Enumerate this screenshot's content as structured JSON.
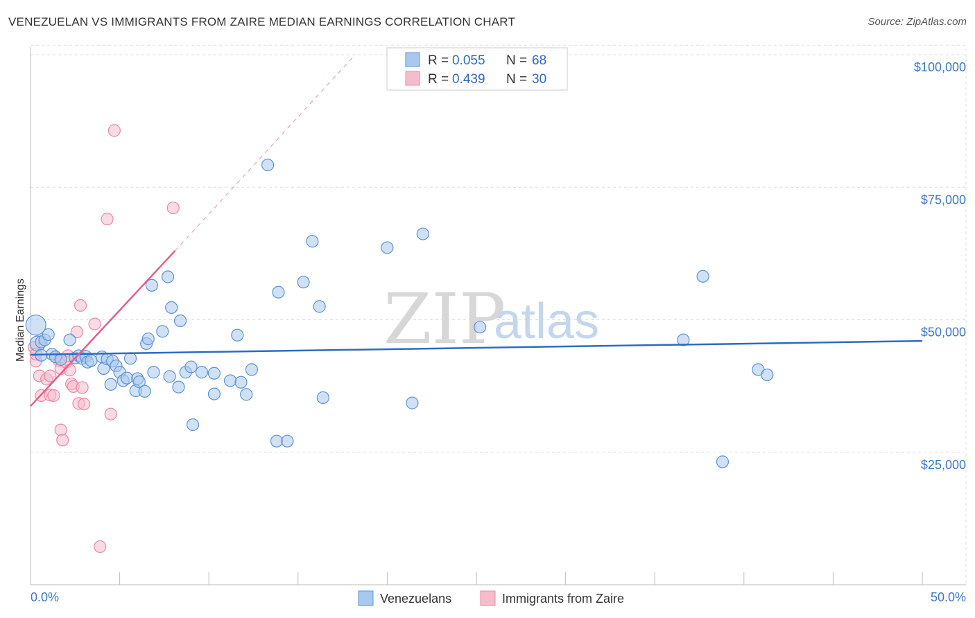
{
  "header": {
    "title": "VENEZUELAN VS IMMIGRANTS FROM ZAIRE MEDIAN EARNINGS CORRELATION CHART",
    "source": "Source: ZipAtlas.com"
  },
  "colors": {
    "blue_fill": "#a9c8ee",
    "blue_stroke": "#5b93d6",
    "blue_line": "#2b6cc4",
    "pink_fill": "#f6bccc",
    "pink_stroke": "#e98aa6",
    "pink_line": "#e4608a",
    "grid": "#dddddd",
    "tick_text": "#3b78c8"
  },
  "legend": {
    "rows": [
      {
        "r_label": "R =",
        "r_value": "0.055",
        "n_label": "N =",
        "n_value": "68"
      },
      {
        "r_label": "R =",
        "r_value": "0.439",
        "n_label": "N =",
        "n_value": "30"
      }
    ]
  },
  "watermark": {
    "zip": "ZIP",
    "atlas": "atlas"
  },
  "chart_data": {
    "type": "scatter",
    "title": "VENEZUELAN VS IMMIGRANTS FROM ZAIRE MEDIAN EARNINGS CORRELATION CHART",
    "xlabel": "",
    "ylabel": "Median Earnings",
    "xlim": [
      0,
      50
    ],
    "ylim": [
      0,
      102000
    ],
    "x_tick_labels": [
      "0.0%",
      "50.0%"
    ],
    "y_ticks": [
      25000,
      50000,
      75000,
      100000
    ],
    "y_tick_labels": [
      "$25,000",
      "$50,000",
      "$75,000",
      "$100,000"
    ],
    "grid": true,
    "legend_position": "top-center",
    "series": [
      {
        "name": "Venezuelans",
        "color": "blue",
        "r": 0.055,
        "n": 68,
        "trend": {
          "x0": 0,
          "y0": 43400,
          "x1": 50,
          "y1": 46000
        },
        "points": [
          [
            0.3,
            49000,
            1.7
          ],
          [
            0.4,
            45500,
            1.3
          ],
          [
            0.6,
            45800,
            1.0
          ],
          [
            0.8,
            46200,
            1.0
          ],
          [
            1.0,
            47200,
            1.0
          ],
          [
            1.2,
            43500,
            1.0
          ],
          [
            1.4,
            43000,
            1.0
          ],
          [
            1.7,
            42500,
            1.0
          ],
          [
            2.2,
            46200,
            1.0
          ],
          [
            2.5,
            42800,
            1.0
          ],
          [
            2.7,
            43200,
            1.0
          ],
          [
            2.9,
            42700,
            1.0
          ],
          [
            3.1,
            43100,
            1.0
          ],
          [
            3.2,
            42000,
            1.0
          ],
          [
            3.4,
            42300,
            1.0
          ],
          [
            4.0,
            43000,
            1.0
          ],
          [
            4.1,
            40800,
            1.0
          ],
          [
            4.3,
            42600,
            1.0
          ],
          [
            4.5,
            37800,
            1.0
          ],
          [
            4.6,
            42200,
            1.0
          ],
          [
            4.8,
            41300,
            1.0
          ],
          [
            5.0,
            40100,
            1.0
          ],
          [
            5.2,
            38500,
            1.0
          ],
          [
            5.4,
            39000,
            1.0
          ],
          [
            5.6,
            42700,
            1.0
          ],
          [
            5.9,
            36600,
            1.0
          ],
          [
            6.0,
            38900,
            1.0
          ],
          [
            6.1,
            38300,
            1.0
          ],
          [
            6.4,
            36500,
            1.0
          ],
          [
            6.5,
            45500,
            1.0
          ],
          [
            6.6,
            46400,
            1.0
          ],
          [
            6.8,
            56500,
            1.0
          ],
          [
            6.9,
            40100,
            1.0
          ],
          [
            7.4,
            47800,
            1.0
          ],
          [
            7.7,
            58100,
            1.0
          ],
          [
            7.8,
            39300,
            1.0
          ],
          [
            7.9,
            52300,
            1.0
          ],
          [
            8.3,
            37300,
            1.0
          ],
          [
            8.4,
            49800,
            1.0
          ],
          [
            8.7,
            40100,
            1.0
          ],
          [
            9.0,
            41100,
            1.0
          ],
          [
            9.1,
            30200,
            1.0
          ],
          [
            9.6,
            40100,
            1.0
          ],
          [
            10.3,
            36000,
            1.0
          ],
          [
            10.3,
            39900,
            1.0
          ],
          [
            11.2,
            38500,
            1.0
          ],
          [
            11.6,
            47100,
            1.0
          ],
          [
            11.8,
            38200,
            1.0
          ],
          [
            12.1,
            35900,
            1.0
          ],
          [
            12.4,
            40600,
            1.0
          ],
          [
            13.3,
            79200,
            1.0
          ],
          [
            13.8,
            27100,
            1.0
          ],
          [
            13.9,
            55200,
            1.0
          ],
          [
            14.4,
            27100,
            1.0
          ],
          [
            15.3,
            57100,
            1.0
          ],
          [
            15.8,
            64800,
            1.0
          ],
          [
            16.2,
            52500,
            1.0
          ],
          [
            16.4,
            35300,
            1.0
          ],
          [
            20.0,
            63600,
            1.0
          ],
          [
            21.4,
            34300,
            1.0
          ],
          [
            22.0,
            66200,
            1.0
          ],
          [
            25.2,
            48600,
            1.0
          ],
          [
            36.6,
            46200,
            1.0
          ],
          [
            37.7,
            58200,
            1.0
          ],
          [
            38.8,
            23200,
            1.0
          ],
          [
            40.8,
            40600,
            1.0
          ],
          [
            41.3,
            39600,
            1.0
          ],
          [
            0.6,
            43300,
            1.0
          ]
        ]
      },
      {
        "name": "Immigrants from Zaire",
        "color": "pink",
        "r": 0.439,
        "n": 30,
        "trend": {
          "x0": 0,
          "y0": 33700,
          "x1": 8.1,
          "y1": 63000,
          "dash_x1": 18.2,
          "dash_y1": 100000
        },
        "points": [
          [
            0.2,
            44800,
            1.0
          ],
          [
            0.3,
            42200,
            1.0
          ],
          [
            0.5,
            39400,
            1.0
          ],
          [
            0.6,
            35700,
            1.0
          ],
          [
            0.9,
            38800,
            1.0
          ],
          [
            1.1,
            39400,
            1.0
          ],
          [
            1.1,
            35800,
            1.0
          ],
          [
            1.3,
            35700,
            1.0
          ],
          [
            1.6,
            42300,
            1.0
          ],
          [
            1.7,
            40800,
            1.0
          ],
          [
            1.7,
            29200,
            1.0
          ],
          [
            1.8,
            27300,
            1.0
          ],
          [
            2.0,
            42000,
            1.0
          ],
          [
            2.1,
            43200,
            1.0
          ],
          [
            2.2,
            40500,
            1.0
          ],
          [
            2.3,
            37900,
            1.0
          ],
          [
            2.4,
            37400,
            1.0
          ],
          [
            2.6,
            47700,
            1.0
          ],
          [
            2.7,
            34200,
            1.0
          ],
          [
            2.8,
            52700,
            1.0
          ],
          [
            2.9,
            37200,
            1.0
          ],
          [
            3.0,
            34100,
            1.0
          ],
          [
            3.6,
            49200,
            1.0
          ],
          [
            3.9,
            7200,
            1.0
          ],
          [
            4.3,
            69000,
            1.0
          ],
          [
            4.5,
            32200,
            1.0
          ],
          [
            4.7,
            85700,
            1.0
          ],
          [
            8.0,
            71100,
            1.0
          ],
          [
            0.3,
            43500,
            1.0
          ],
          [
            1.4,
            43000,
            1.0
          ]
        ]
      }
    ]
  }
}
